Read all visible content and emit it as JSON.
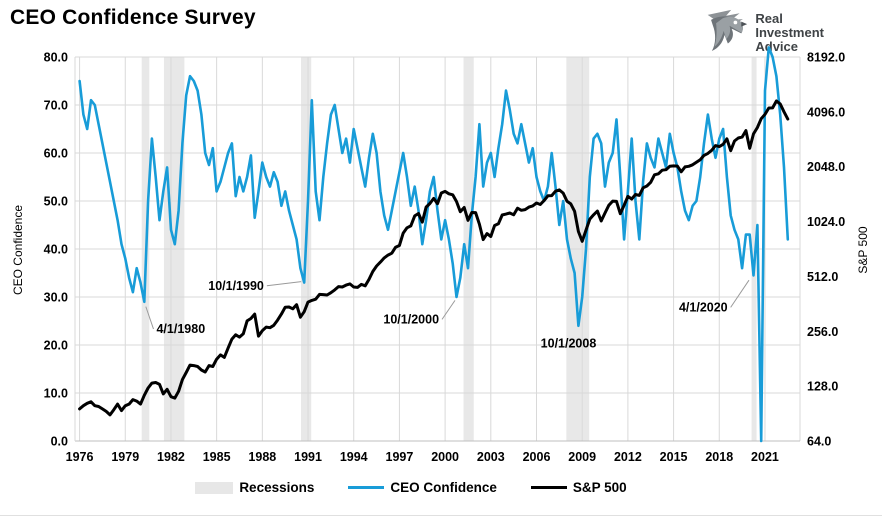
{
  "header": {
    "title": "CEO Confidence Survey",
    "logo": {
      "line1": "Real",
      "line2": "Investment",
      "line3": "Advice"
    }
  },
  "legend": {
    "items": [
      {
        "label": "Recessions",
        "type": "band",
        "color": "#e7e7e7"
      },
      {
        "label": "CEO Confidence",
        "type": "line",
        "color": "#189cd8"
      },
      {
        "label": "S&P 500",
        "type": "line",
        "color": "#000000"
      }
    ]
  },
  "chart_data": {
    "type": "line",
    "title": "CEO Confidence Survey",
    "grid": true,
    "colors": {
      "ceo_line": "#189cd8",
      "sp500_line": "#000000",
      "recession_band": "#e8e8e8",
      "gridline": "#d9d9d9",
      "spine": "#bfbfbf",
      "leader": "#9a9a9a"
    },
    "x": {
      "min": 1975.7,
      "max": 2023.3,
      "ticks": [
        1976,
        1979,
        1982,
        1985,
        1988,
        1991,
        1994,
        1997,
        2000,
        2003,
        2006,
        2009,
        2012,
        2015,
        2018,
        2021
      ]
    },
    "y_left": {
      "label": "CEO Confidence",
      "min": 0,
      "max": 80,
      "ticks": [
        "0.0",
        "10.0",
        "20.0",
        "30.0",
        "40.0",
        "50.0",
        "60.0",
        "70.0",
        "80.0"
      ]
    },
    "y_right": {
      "label": "S&P 500",
      "scale": "log2",
      "min": 64,
      "max": 8192,
      "ticks": [
        "64.0",
        "128.0",
        "256.0",
        "512.0",
        "1024.0",
        "2048.0",
        "4096.0",
        "8192.0"
      ]
    },
    "x_start": 1976.0,
    "x_step": 0.25,
    "series": [
      {
        "name": "CEO Confidence",
        "axis": "left",
        "color": "#189cd8",
        "width": 2.6,
        "values": [
          75,
          68,
          65,
          71,
          70,
          66,
          62,
          58,
          54,
          50,
          46,
          41,
          38,
          34,
          31,
          36,
          33,
          29,
          50,
          63,
          55,
          46,
          52,
          57,
          44,
          41,
          48,
          62,
          72,
          76,
          75,
          73,
          68,
          60,
          57.5,
          61,
          52,
          54,
          57,
          60,
          62,
          51,
          55,
          52,
          55,
          59.5,
          46.5,
          52,
          58,
          55,
          53,
          56,
          54,
          49,
          52,
          48,
          45,
          42,
          36,
          33,
          50,
          71,
          52,
          46,
          55,
          62,
          68,
          70,
          65,
          60,
          63,
          58,
          65,
          61,
          57,
          53,
          59,
          64,
          60,
          52,
          47,
          44,
          48,
          52,
          56,
          60,
          55,
          49,
          53,
          48,
          41,
          46,
          52,
          55,
          48,
          42,
          46,
          42,
          37,
          30,
          34,
          41,
          36,
          47,
          55,
          66,
          53,
          58,
          60,
          55,
          61,
          66,
          73,
          69,
          64,
          62,
          66,
          62,
          58,
          61,
          55,
          52,
          50,
          53,
          60,
          53,
          45,
          50,
          42,
          38,
          35,
          24,
          30,
          40,
          55,
          63,
          64,
          62,
          53,
          58,
          60,
          67,
          55,
          42,
          52,
          63,
          50,
          42,
          54,
          62,
          59,
          57,
          63,
          60,
          57,
          64,
          60,
          57,
          52,
          48,
          46,
          49,
          50,
          55,
          62,
          68,
          63,
          59,
          63,
          65,
          55,
          47,
          44,
          42,
          36,
          43,
          43,
          34.5,
          45,
          0,
          73,
          82,
          80,
          76,
          68,
          57,
          42
        ]
      },
      {
        "name": "S&P 500",
        "axis": "right",
        "color": "#000000",
        "width": 3,
        "values": [
          96,
          100,
          103,
          105,
          100,
          99,
          96,
          93,
          89,
          95,
          102,
          94,
          100,
          102,
          108,
          106,
          102,
          114,
          125,
          133,
          134,
          131,
          116,
          123,
          112,
          110,
          120,
          139,
          152,
          167,
          166,
          164,
          157,
          153,
          166,
          164,
          180,
          190,
          184,
          207,
          232,
          245,
          238,
          248,
          292,
          301,
          318,
          241,
          258,
          270,
          268,
          276,
          295,
          318,
          347,
          348,
          340,
          358,
          306,
          328,
          370,
          378,
          384,
          408,
          407,
          405,
          417,
          432,
          450,
          448,
          459,
          466,
          448,
          446,
          463,
          455,
          493,
          545,
          584,
          614,
          647,
          670,
          687,
          741,
          757,
          885,
          947,
          970,
          1100,
          1134,
          1017,
          1229,
          1286,
          1373,
          1283,
          1469,
          1499,
          1455,
          1437,
          1320,
          1160,
          1224,
          1041,
          1148,
          1147,
          990,
          815,
          880,
          848,
          975,
          996,
          1112,
          1126,
          1141,
          1115,
          1212,
          1181,
          1191,
          1229,
          1248,
          1295,
          1270,
          1336,
          1418,
          1421,
          1503,
          1527,
          1468,
          1323,
          1280,
          1166,
          903,
          798,
          919,
          1057,
          1115,
          1169,
          1031,
          1141,
          1258,
          1326,
          1321,
          1131,
          1258,
          1408,
          1362,
          1441,
          1426,
          1569,
          1606,
          1682,
          1848,
          1872,
          1960,
          1972,
          2059,
          2068,
          2063,
          1920,
          2044,
          2060,
          2099,
          2168,
          2239,
          2363,
          2423,
          2519,
          2674,
          2641,
          2718,
          2914,
          2507,
          2834,
          2942,
          2977,
          3231,
          2585,
          3100,
          3363,
          3756,
          3973,
          4298,
          4308,
          4700,
          4530,
          4100,
          3740
        ]
      }
    ],
    "recessions": {
      "label": "Recessions",
      "color": "#e8e8e8",
      "bands": [
        [
          1980.08,
          1980.58
        ],
        [
          1981.54,
          1982.88
        ],
        [
          1990.54,
          1991.21
        ],
        [
          2001.21,
          2001.88
        ],
        [
          2007.96,
          2009.46
        ],
        [
          2020.12,
          2020.33
        ]
      ]
    },
    "annotations": [
      {
        "text": "4/1/1980",
        "anchor": "start",
        "label": [
          1981.05,
          22.5
        ],
        "point": [
          1980.35,
          28.0
        ]
      },
      {
        "text": "10/1/1990",
        "anchor": "end",
        "label": [
          1988.1,
          31.5
        ],
        "point": [
          1990.55,
          33.2
        ]
      },
      {
        "text": "10/1/2000",
        "anchor": "end",
        "label": [
          1999.6,
          24.5
        ],
        "point": [
          2000.65,
          29.3
        ]
      },
      {
        "text": "10/1/2008",
        "anchor": "middle",
        "label": [
          2008.1,
          19.5
        ],
        "point": null
      },
      {
        "text": "4/1/2020",
        "anchor": "end",
        "label": [
          2018.55,
          27.0
        ],
        "point": [
          2019.95,
          33.5
        ]
      }
    ],
    "legend": [
      "Recessions",
      "CEO Confidence",
      "S&P 500"
    ]
  }
}
